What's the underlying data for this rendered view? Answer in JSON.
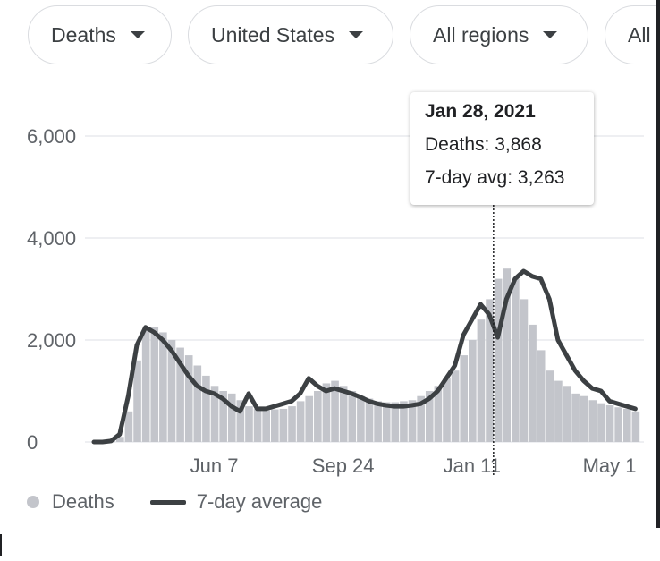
{
  "filters": {
    "metric": "Deaths",
    "country": "United States",
    "region": "All regions",
    "extra": "All"
  },
  "tooltip": {
    "date": "Jan 28, 2021",
    "deaths": "Deaths: 3,868",
    "avg": "7-day avg: 3,263"
  },
  "legend": {
    "deaths": "Deaths",
    "avg": "7-day average"
  },
  "colors": {
    "bars": "#c3c5cb",
    "line": "#3c4043",
    "grid": "#e8eaed",
    "text": "#5f6368"
  },
  "chart_data": {
    "type": "bar",
    "title": "",
    "xlabel": "",
    "ylabel": "",
    "ylim": [
      0,
      6000
    ],
    "yticks": [
      {
        "value": 0,
        "label": "0"
      },
      {
        "value": 2000,
        "label": "2,000"
      },
      {
        "value": 4000,
        "label": "4,000"
      },
      {
        "value": 6000,
        "label": "6,000"
      }
    ],
    "xticks": [
      {
        "week": 14,
        "label": "Jun 7"
      },
      {
        "week": 29,
        "label": "Sep 24"
      },
      {
        "week": 44,
        "label": "Jan 11"
      },
      {
        "week": 60,
        "label": "May 1"
      }
    ],
    "x_range_weeks": [
      0,
      64
    ],
    "highlight_week": 46.5,
    "series": [
      {
        "name": "Deaths",
        "type": "bar",
        "values": [
          0,
          0,
          20,
          100,
          600,
          1600,
          2200,
          2250,
          2150,
          2000,
          1850,
          1700,
          1500,
          1300,
          1100,
          1000,
          950,
          820,
          700,
          650,
          620,
          640,
          650,
          700,
          800,
          900,
          1000,
          1150,
          1200,
          1100,
          1000,
          900,
          850,
          800,
          780,
          780,
          800,
          820,
          900,
          1000,
          1100,
          1250,
          1400,
          1700,
          2000,
          2400,
          2800,
          3200,
          3400,
          3200,
          2800,
          2300,
          1800,
          1400,
          1200,
          1100,
          950,
          900,
          820,
          760,
          720,
          680,
          650,
          600
        ]
      },
      {
        "name": "7-day average",
        "type": "line",
        "values": [
          0,
          0,
          20,
          150,
          900,
          1900,
          2250,
          2150,
          2000,
          1800,
          1550,
          1300,
          1100,
          1000,
          950,
          850,
          700,
          600,
          950,
          650,
          650,
          700,
          750,
          800,
          950,
          1250,
          1100,
          1000,
          1050,
          1000,
          950,
          880,
          800,
          750,
          720,
          700,
          700,
          720,
          750,
          850,
          1000,
          1250,
          1500,
          2100,
          2400,
          2700,
          2500,
          2050,
          2800,
          3200,
          3350,
          3250,
          3200,
          2800,
          2000,
          1700,
          1400,
          1200,
          1050,
          1000,
          800,
          750,
          700,
          650
        ]
      }
    ]
  }
}
